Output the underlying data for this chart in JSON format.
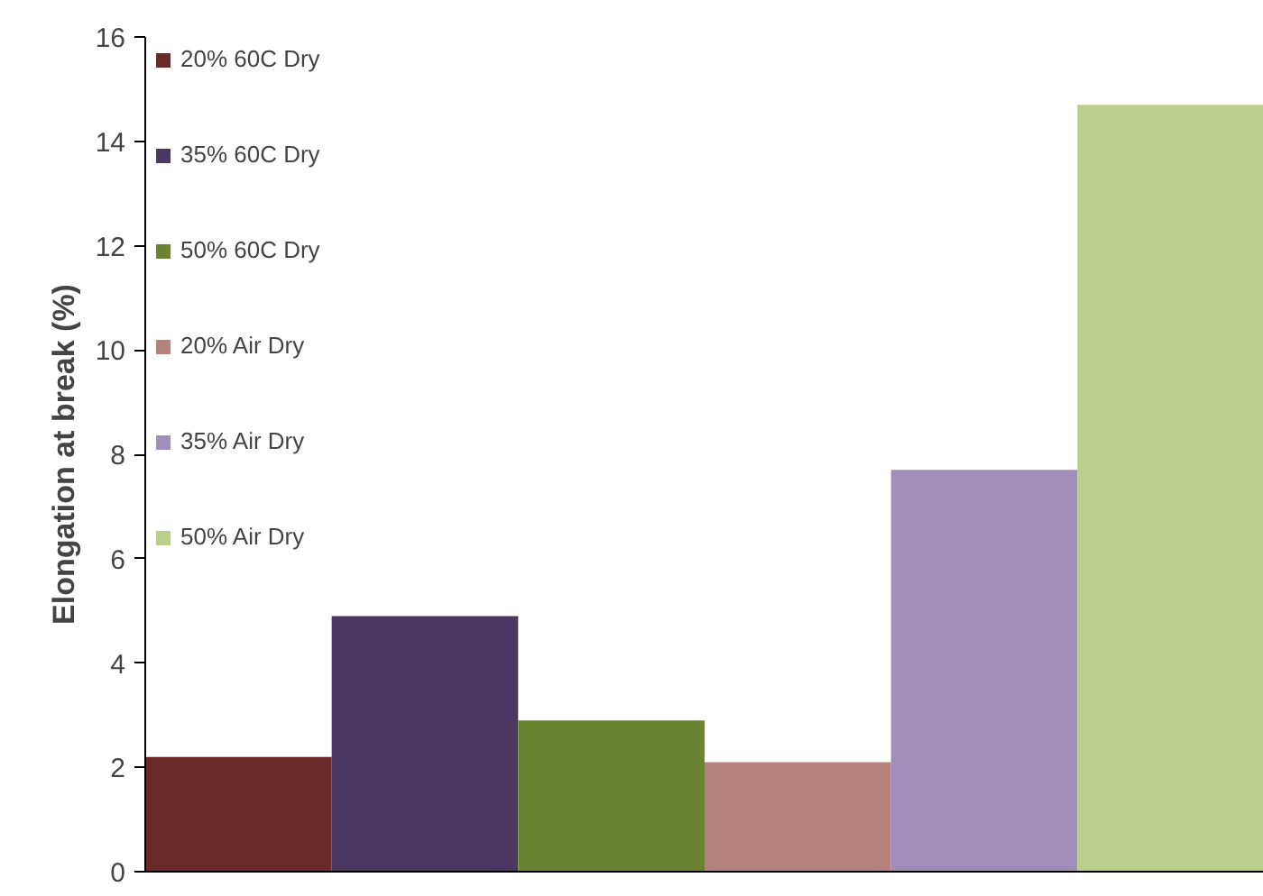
{
  "chart_data": {
    "type": "bar",
    "ylabel": "Elongation at break (%)",
    "categories": [
      null
    ],
    "series": [
      {
        "name": "20% 60C Dry",
        "color": "#6b2a2a",
        "values": [
          2.2
        ]
      },
      {
        "name": "35% 60C Dry",
        "color": "#4a3763",
        "values": [
          4.9
        ]
      },
      {
        "name": "50% 60C Dry",
        "color": "#6b8232",
        "values": [
          2.9
        ]
      },
      {
        "name": "20% Air Dry",
        "color": "#b5827e",
        "values": [
          2.1
        ]
      },
      {
        "name": "35% Air Dry",
        "color": "#a08eba",
        "values": [
          7.7
        ]
      },
      {
        "name": "50% Air Dry",
        "color": "#bcce8c",
        "values": [
          14.7
        ]
      }
    ],
    "ylim": [
      0,
      16
    ],
    "yticks": [
      0,
      2,
      4,
      6,
      8,
      10,
      12,
      14,
      16
    ],
    "grid": false,
    "legend": "top left",
    "tick_labels": "y"
  }
}
